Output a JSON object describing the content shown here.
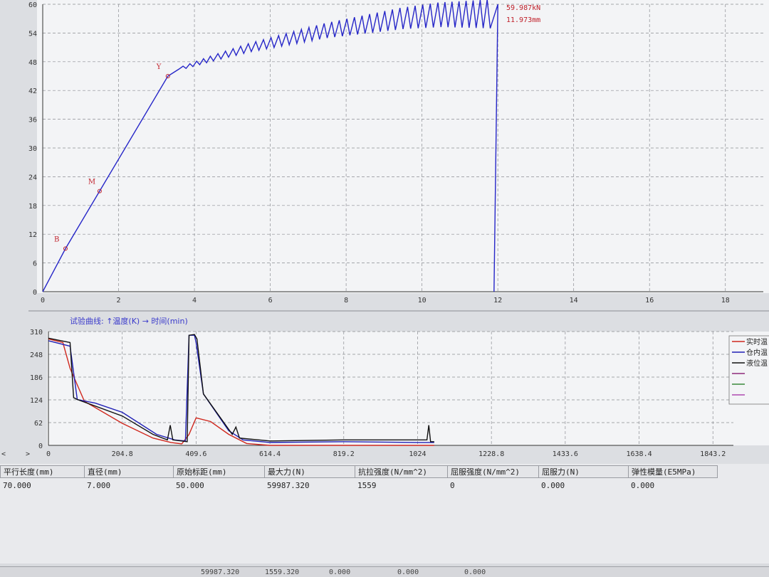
{
  "chart_data": [
    {
      "type": "line",
      "xlim": [
        0,
        19
      ],
      "ylim": [
        0,
        60
      ],
      "x_ticks": [
        "0",
        "2",
        "4",
        "6",
        "8",
        "10",
        "12",
        "14",
        "16",
        "18"
      ],
      "y_ticks": [
        "0",
        "6",
        "12",
        "18",
        "24",
        "30",
        "36",
        "42",
        "48",
        "54",
        "60"
      ],
      "grid": true,
      "series": [
        {
          "color": "#2626c8",
          "points": [
            [
              0,
              0
            ],
            [
              0.6,
              9
            ],
            [
              1.5,
              21
            ],
            [
              3.3,
              45
            ],
            [
              3.6,
              46.5
            ],
            [
              4.5,
              49
            ],
            [
              5.5,
              51.5
            ],
            [
              6.5,
              53.5
            ],
            [
              7.5,
              55.5
            ],
            [
              8.5,
              57
            ],
            [
              9.5,
              58.5
            ],
            [
              10.5,
              59.5
            ],
            [
              11.8,
              59.98
            ],
            [
              12.0,
              59.98
            ],
            [
              11.9,
              0
            ]
          ]
        }
      ],
      "point_markers": [
        {
          "label": "B",
          "x": 0.6,
          "y": 9
        },
        {
          "label": "M",
          "x": 1.5,
          "y": 21
        },
        {
          "label": "Y",
          "x": 3.3,
          "y": 45
        }
      ],
      "annotations": [
        "59.987kN",
        "11.973mm"
      ]
    },
    {
      "type": "line",
      "title": "试验曲线:   ↑温度(K)   → 时间(min)",
      "xlim": [
        0,
        1900
      ],
      "ylim": [
        0,
        310
      ],
      "x_ticks": [
        "0",
        "204.8",
        "409.6",
        "614.4",
        "819.2",
        "1024",
        "1228.8",
        "1433.6",
        "1638.4",
        "1843.2"
      ],
      "y_ticks": [
        "0",
        "62",
        "124",
        "186",
        "248",
        "310"
      ],
      "grid": true,
      "series": [
        {
          "name": "实时温",
          "color": "#d0281e",
          "points": [
            [
              0,
              290
            ],
            [
              40,
              280
            ],
            [
              60,
              210
            ],
            [
              100,
              120
            ],
            [
              204.8,
              60
            ],
            [
              290,
              20
            ],
            [
              340,
              8
            ],
            [
              370,
              4
            ],
            [
              390,
              30
            ],
            [
              409.6,
              75
            ],
            [
              450,
              65
            ],
            [
              500,
              30
            ],
            [
              550,
              5
            ],
            [
              614.4,
              0
            ],
            [
              819.2,
              0
            ],
            [
              1024,
              0
            ],
            [
              1070,
              0
            ]
          ]
        },
        {
          "name": "仓内温",
          "color": "#1f1fb5",
          "points": [
            [
              0,
              285
            ],
            [
              60,
              270
            ],
            [
              80,
              125
            ],
            [
              130,
              115
            ],
            [
              204.8,
              90
            ],
            [
              300,
              30
            ],
            [
              350,
              15
            ],
            [
              380,
              12
            ],
            [
              390,
              300
            ],
            [
              405,
              300
            ],
            [
              409.6,
              280
            ],
            [
              430,
              140
            ],
            [
              500,
              40
            ],
            [
              540,
              15
            ],
            [
              614.4,
              8
            ],
            [
              819.2,
              10
            ],
            [
              1024,
              8
            ],
            [
              1070,
              8
            ]
          ]
        },
        {
          "name": "液位温",
          "color": "#111111",
          "points": [
            [
              0,
              292
            ],
            [
              60,
              280
            ],
            [
              70,
              130
            ],
            [
              80,
              125
            ],
            [
              204.8,
              80
            ],
            [
              290,
              30
            ],
            [
              330,
              15
            ],
            [
              338,
              55
            ],
            [
              345,
              15
            ],
            [
              385,
              10
            ],
            [
              390,
              300
            ],
            [
              405,
              302
            ],
            [
              412,
              290
            ],
            [
              430,
              140
            ],
            [
              510,
              30
            ],
            [
              520,
              50
            ],
            [
              530,
              20
            ],
            [
              614.4,
              12
            ],
            [
              819.2,
              15
            ],
            [
              1024,
              15
            ],
            [
              1050,
              15
            ],
            [
              1055,
              55
            ],
            [
              1060,
              10
            ],
            [
              1070,
              10
            ]
          ]
        },
        {
          "name": "",
          "color": "#8e2a7a",
          "points": []
        },
        {
          "name": "",
          "color": "#3a8a3a",
          "points": []
        },
        {
          "name": "",
          "color": "#b04ab0",
          "points": []
        }
      ]
    }
  ],
  "results": {
    "headers": [
      "平行长度(mm)",
      "直径(mm)",
      "原始标距(mm)",
      "最大力(N)",
      "抗拉强度(N/mm^2)",
      "屈服强度(N/mm^2)",
      "屈服力(N)",
      "弹性模量(E5MPa)"
    ],
    "values": [
      "70.000",
      "7.000",
      "50.000",
      "59987.320",
      "1559",
      "0",
      "0.000",
      "0.000"
    ]
  },
  "footer": {
    "values": [
      "59987.320",
      "1559.320",
      "0.000",
      "0.000",
      "0.000"
    ]
  },
  "ui": {
    "scroll_left_arrow": "<",
    "scroll_right_arrow": ">"
  }
}
